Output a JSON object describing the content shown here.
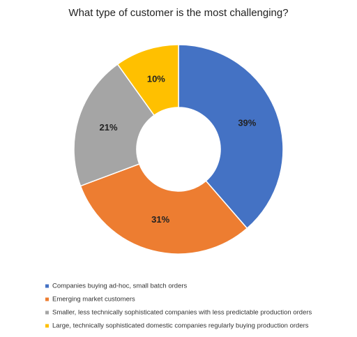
{
  "chart_data": {
    "type": "donut",
    "title": "What type of customer is the most challenging?",
    "categories": [
      "Companies buying ad-hoc, small batch orders",
      "Emerging market customers",
      "Smaller, less technically sophisticated companies with less predictable production orders",
      "Large, technically sophisticated domestic companies regularly buying production orders"
    ],
    "values": [
      39,
      31,
      21,
      10
    ],
    "value_labels": [
      "39%",
      "31%",
      "21%",
      "10%"
    ],
    "colors": [
      "#4472c4",
      "#ed7d31",
      "#a5a5a5",
      "#ffc000"
    ],
    "legend": "bottom"
  }
}
